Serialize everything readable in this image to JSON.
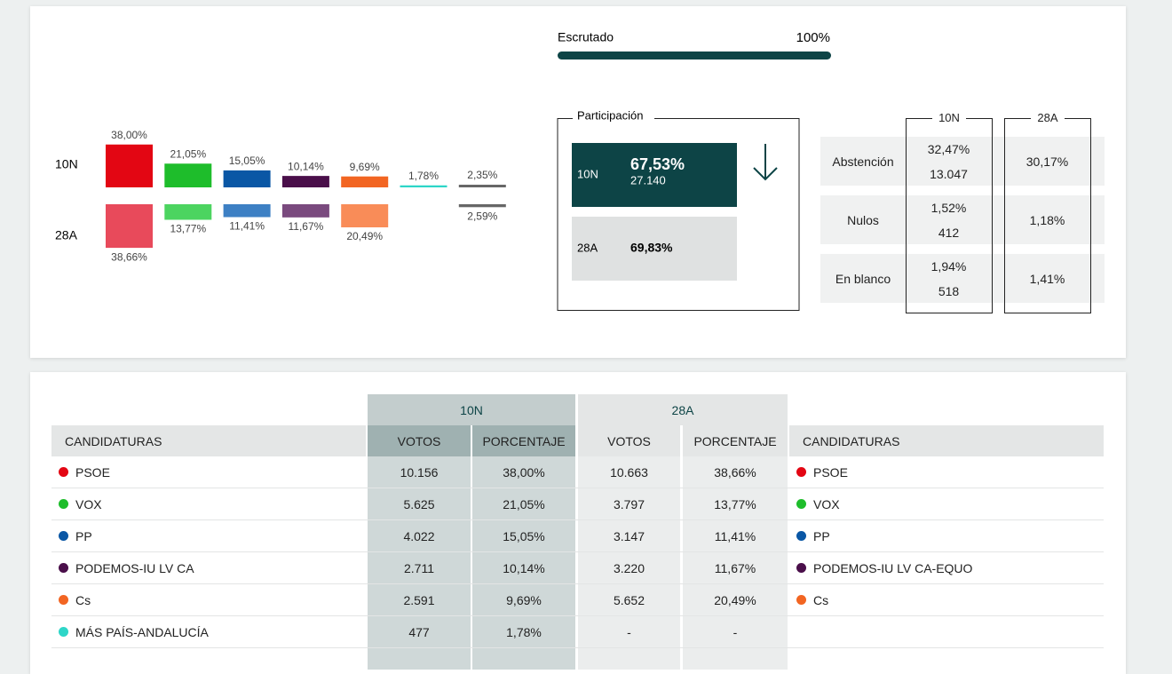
{
  "summary": {
    "scrutiny_label": "Escrutado",
    "scrutiny": {
      "value": 100,
      "label": "100%"
    }
  },
  "chart_data": {
    "type": "bar",
    "series": [
      {
        "name": "10N",
        "values": [
          38.0,
          21.05,
          15.05,
          10.14,
          9.69,
          1.78,
          2.35
        ],
        "value_labels": [
          "38,00%",
          "21,05%",
          "15,05%",
          "10,14%",
          "9,69%",
          "1,78%",
          "2,35%"
        ],
        "colors": [
          "#e30613",
          "#1ebd2b",
          "#0a57a5",
          "#4a0f4a",
          "#f26522",
          "#2ed6c8",
          "#666666"
        ]
      },
      {
        "name": "28A",
        "values": [
          38.66,
          13.77,
          11.41,
          11.67,
          20.49,
          null,
          2.59
        ],
        "value_labels": [
          "38,66%",
          "13,77%",
          "11,41%",
          "11,67%",
          "20,49%",
          null,
          "2,59%"
        ],
        "colors": [
          "#e84a5b",
          "#4cd460",
          "#3d80c4",
          "#7a4a7e",
          "#f98c58",
          "#2ed6c8",
          "#666666"
        ]
      }
    ]
  },
  "participation": {
    "title": "Participación",
    "rows": [
      {
        "label": "10N",
        "percent": "67,53%",
        "votes": "27.140"
      },
      {
        "label": "28A",
        "percent": "69,83%"
      }
    ]
  },
  "abstention": {
    "columns": [
      "10N",
      "28A"
    ],
    "rows": [
      {
        "label": "Abstención",
        "first": [
          "32,47%",
          "13.047"
        ],
        "second": "30,17%"
      },
      {
        "label": "Nulos",
        "first": [
          "1,52%",
          "412"
        ],
        "second": "1,18%"
      },
      {
        "label": "En blanco",
        "first": [
          "1,94%",
          "518"
        ],
        "second": "1,41%"
      }
    ]
  },
  "results": {
    "group_headers": [
      "10N",
      "28A"
    ],
    "columns": [
      "CANDIDATURAS",
      "VOTOS",
      "PORCENTAJE",
      "VOTOS",
      "PORCENTAJE",
      "CANDIDATURAS"
    ],
    "rows": [
      [
        "PSOE",
        "10.156",
        "38,00%",
        "10.663",
        "38,66%",
        "PSOE"
      ],
      [
        "VOX",
        "5.625",
        "21,05%",
        "3.797",
        "13,77%",
        "VOX"
      ],
      [
        "PP",
        "4.022",
        "15,05%",
        "3.147",
        "11,41%",
        "PP"
      ],
      [
        "PODEMOS-IU LV CA",
        "2.711",
        "10,14%",
        "3.220",
        "11,67%",
        "PODEMOS-IU LV CA-EQUO"
      ],
      [
        "Cs",
        "2.591",
        "9,69%",
        "5.652",
        "20,49%",
        "Cs"
      ],
      [
        "MÁS PAÍS-ANDALUCÍA",
        "477",
        "1,78%",
        "-",
        "-",
        null
      ]
    ],
    "party_colors": [
      [
        "#e30613",
        "#e30613"
      ],
      [
        "#1ebd2b",
        "#1ebd2b"
      ],
      [
        "#0a57a5",
        "#0a57a5"
      ],
      [
        "#4a0f4a",
        "#4a0f4a"
      ],
      [
        "#f26522",
        "#f26522"
      ],
      [
        "#2ed6c8",
        null
      ]
    ]
  }
}
